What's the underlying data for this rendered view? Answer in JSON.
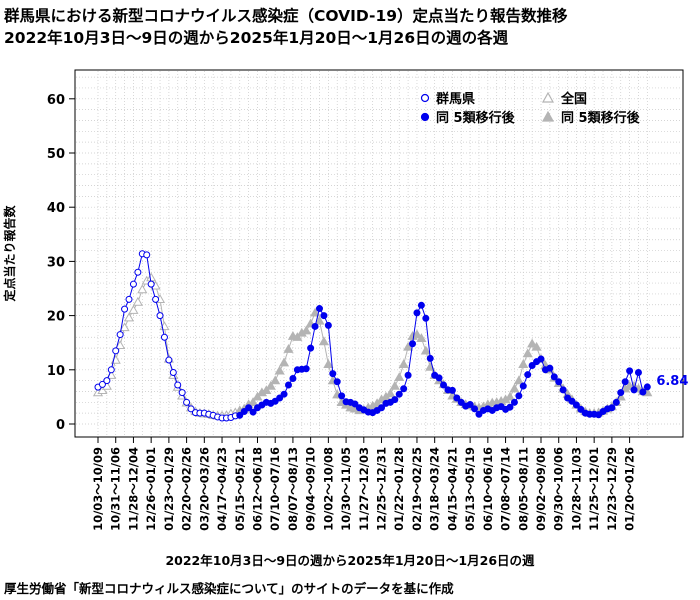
{
  "title_line1": "群馬県における新型コロナウイルス感染症（COVID-19）定点当たり報告数推移",
  "title_line2": "2022年10月3日～9日の週から2025年1月20日～1月26日の週の各週",
  "source_note": "厚生労働省「新型コロナウィルス感染症について」のサイトのデータを基に作成",
  "colors": {
    "gunma": "#0000ee",
    "national": "#b4b4b4",
    "grid": "#c8c8c8"
  },
  "chart_data": {
    "type": "line",
    "xlabel": "2022年10月3日～9日の週から2025年1月20日～1月26日の週",
    "ylabel": "定点当たり報告数",
    "ylim": [
      0,
      65
    ],
    "yticks": [
      0,
      10,
      20,
      30,
      40,
      50,
      60
    ],
    "grid": true,
    "legend_position": "top-right",
    "x_tick_labels": [
      "10/03～10/09",
      "10/31～11/06",
      "11/28～12/04",
      "12/26～01/01",
      "01/23～01/29",
      "02/20～02/26",
      "03/20～03/26",
      "04/17～04/23",
      "05/15～05/21",
      "06/12～06/18",
      "07/10～07/16",
      "08/07～08/13",
      "09/04～09/10",
      "10/02～10/08",
      "10/30～11/05",
      "11/27～12/03",
      "12/25～12/31",
      "01/22～01/28",
      "02/19～02/25",
      "03/18～03/24",
      "04/15～04/21",
      "05/13～05/19",
      "06/10～06/16",
      "07/08～07/14",
      "08/05～08/11",
      "09/02～09/08",
      "09/30～10/06",
      "10/28～11/03",
      "11/25～12/01",
      "12/23～12/29",
      "01/20～01/26"
    ],
    "tick_every_weeks": 4,
    "split_week_index": 32,
    "legend": {
      "gunma": "群馬県",
      "national": "全国",
      "gunma_after": "同 5類移行後",
      "national_after": "同 5類移行後"
    },
    "series": [
      {
        "name": "群馬県",
        "values": [
          6.8,
          7.3,
          8.0,
          10.0,
          13.5,
          16.5,
          21.2,
          23.0,
          25.8,
          28.0,
          31.4,
          31.2,
          25.8,
          23.0,
          20.0,
          16.0,
          11.8,
          9.5,
          7.2,
          5.8,
          4.0,
          2.8,
          2.1,
          2.0,
          2.0,
          1.8,
          1.6,
          1.3,
          1.1,
          1.1,
          1.2,
          1.5,
          1.6,
          2.3,
          3.0,
          2.2,
          3.0,
          3.5,
          4.0,
          3.8,
          4.2,
          4.8,
          5.5,
          7.2,
          8.4,
          10.0,
          10.1,
          10.2,
          14.0,
          18.0,
          21.3,
          20.0,
          18.2,
          9.3,
          7.8,
          5.2,
          4.1,
          4.0,
          3.7,
          3.0,
          2.6,
          2.2,
          2.1,
          2.5,
          3.0,
          3.8,
          4.0,
          4.5,
          5.5,
          6.5,
          9.0,
          14.8,
          20.5,
          21.9,
          19.5,
          12.1,
          9.0,
          8.5,
          7.2,
          6.3,
          6.2,
          4.8,
          4.0,
          3.3,
          3.6,
          2.8,
          1.8,
          2.5,
          2.8,
          2.5,
          3.0,
          3.2,
          2.7,
          3.1,
          4.0,
          5.2,
          7.0,
          9.1,
          10.8,
          11.5,
          12.0,
          10.0,
          10.3,
          8.7,
          7.8,
          6.3,
          4.8,
          4.2,
          3.5,
          2.7,
          2.0,
          1.8,
          1.8,
          1.7,
          2.3,
          2.8,
          3.0,
          4.0,
          5.8,
          7.8,
          9.8,
          6.3,
          9.5,
          5.9,
          6.84
        ]
      },
      {
        "name": "全国",
        "values": [
          5.8,
          6.2,
          7.0,
          9.0,
          11.8,
          14.5,
          17.8,
          19.6,
          21.0,
          22.5,
          24.8,
          26.4,
          27.0,
          25.5,
          23.0,
          18.0,
          12.0,
          9.0,
          6.8,
          5.2,
          3.9,
          3.0,
          2.3,
          2.0,
          1.9,
          1.8,
          1.6,
          1.5,
          1.5,
          1.6,
          1.9,
          2.1,
          2.5,
          2.8,
          3.6,
          4.0,
          5.0,
          5.8,
          6.2,
          7.0,
          8.0,
          9.8,
          11.3,
          13.8,
          16.2,
          16.0,
          16.8,
          17.2,
          18.5,
          20.5,
          19.0,
          15.2,
          11.0,
          8.0,
          5.4,
          4.0,
          3.5,
          3.0,
          2.8,
          2.5,
          2.6,
          3.0,
          3.3,
          3.8,
          4.5,
          5.0,
          5.6,
          7.0,
          8.6,
          11.0,
          14.2,
          16.2,
          16.5,
          15.8,
          13.5,
          10.5,
          9.0,
          8.0,
          7.3,
          6.2,
          5.2,
          4.6,
          4.0,
          3.6,
          3.4,
          3.2,
          3.0,
          3.2,
          3.6,
          3.9,
          4.0,
          4.2,
          4.5,
          5.0,
          6.5,
          8.0,
          11.0,
          13.0,
          14.8,
          14.2,
          12.0,
          10.8,
          10.0,
          8.5,
          7.5,
          6.5,
          5.5,
          4.5,
          3.5,
          2.8,
          2.3,
          2.0,
          2.0,
          2.1,
          2.4,
          2.8,
          3.2,
          4.0,
          5.0,
          6.5,
          7.0,
          7.0,
          6.5,
          6.0,
          5.8
        ]
      }
    ],
    "annotation": "6.84"
  }
}
